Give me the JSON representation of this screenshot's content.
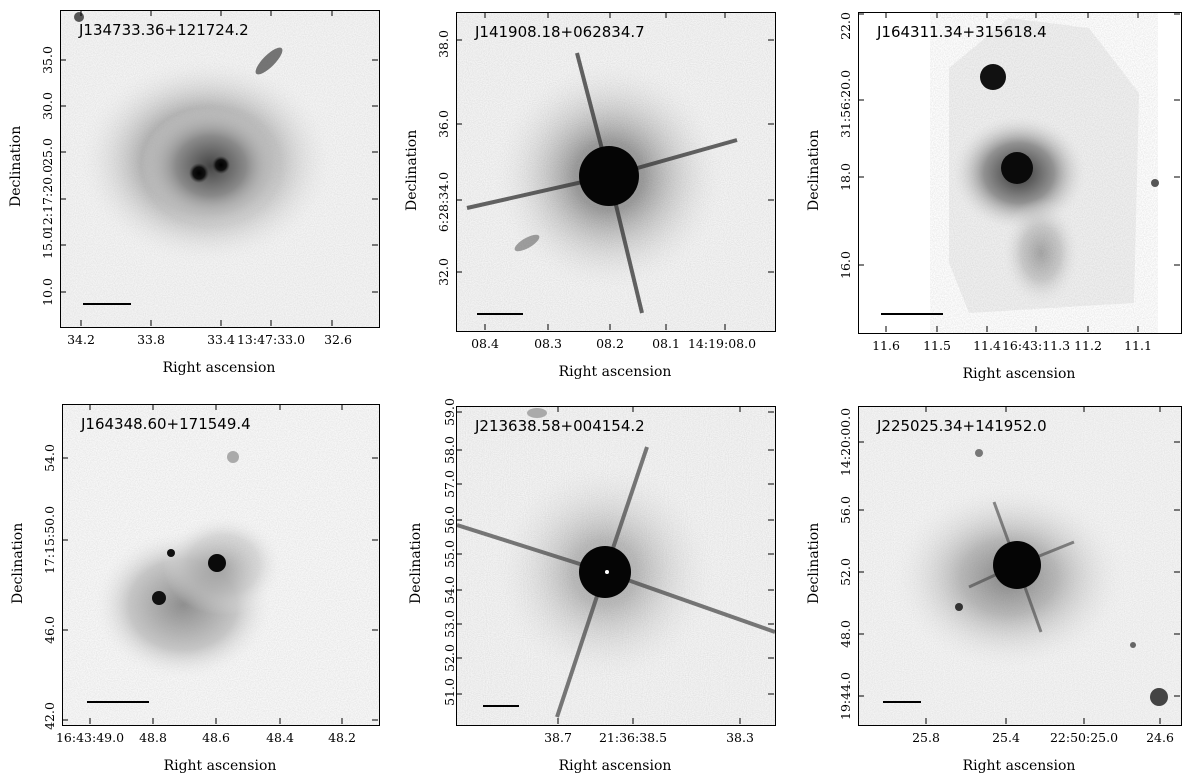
{
  "axis": {
    "xlabel": "Right ascension",
    "ylabel": "Declination"
  },
  "panels": [
    {
      "object": "J134733.36+121724.2",
      "xticks": [
        "34.2",
        "33.8",
        "33.4",
        "13:47:33.0",
        "32.6"
      ],
      "yticks": [
        "35.0",
        "30.0",
        "25.0",
        "12:17:20.0",
        "15.0",
        "10.0"
      ]
    },
    {
      "object": "J141908.18+062834.7",
      "xticks": [
        "08.4",
        "08.3",
        "08.2",
        "08.1",
        "14:19:08.0"
      ],
      "yticks": [
        "38.0",
        "36.0",
        "6:28:34.0",
        "32.0"
      ]
    },
    {
      "object": "J164311.34+315618.4",
      "xticks": [
        "11.6",
        "11.5",
        "11.4",
        "16:43:11.3",
        "11.2",
        "11.1"
      ],
      "yticks": [
        "22.0",
        "31:56:20.0",
        "18.0",
        "16.0"
      ]
    },
    {
      "object": "J164348.60+171549.4",
      "xticks": [
        "16:43:49.0",
        "48.8",
        "48.6",
        "48.4",
        "48.2"
      ],
      "yticks": [
        "54.0",
        "17:15:50.0",
        "46.0",
        "42.0"
      ]
    },
    {
      "object": "J213638.58+004154.2",
      "xticks": [
        "38.7",
        "21:36:38.5",
        "38.3"
      ],
      "yticks": [
        "59.0",
        "58.0",
        "57.0",
        "56.0",
        "55.0",
        "54.0",
        "53.0",
        "52.0",
        "51.0"
      ]
    },
    {
      "object": "J225025.34+141952.0",
      "xticks": [
        "25.8",
        "25.4",
        "22:50:25.0",
        "24.6"
      ],
      "yticks": [
        "14:20:00.0",
        "56.0",
        "52.0",
        "48.0",
        "19:44.0"
      ]
    }
  ]
}
